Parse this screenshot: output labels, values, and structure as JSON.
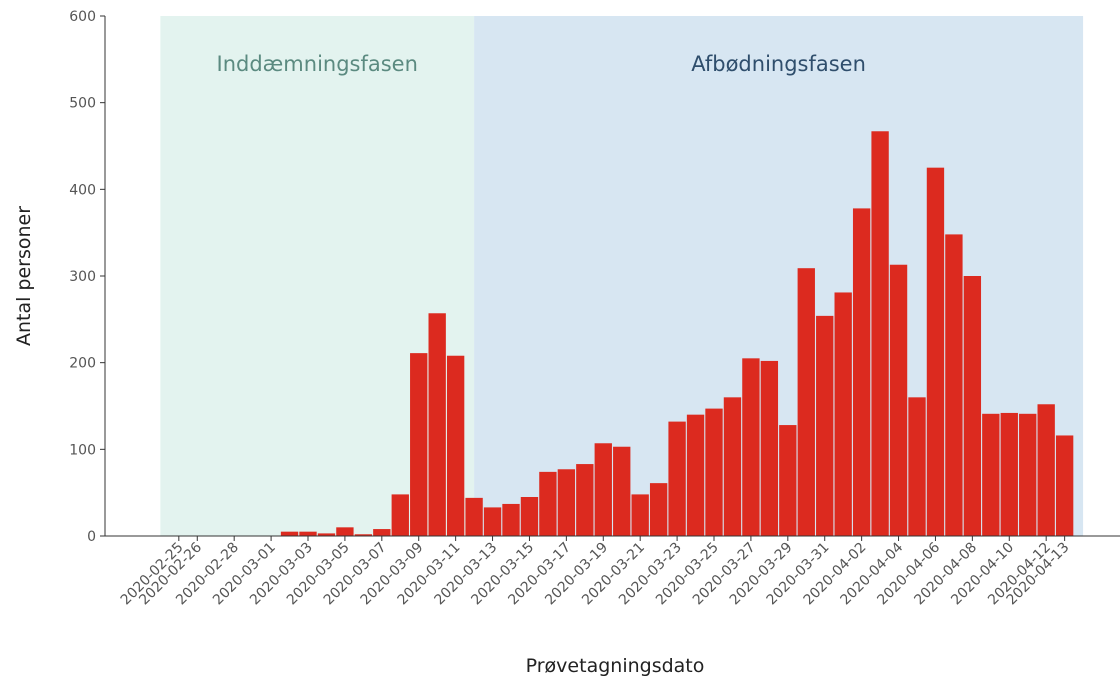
{
  "chart_data": {
    "type": "bar",
    "x_label": "Prøvetagningsdato",
    "y_label": "Antal personer",
    "x": [
      "2020-03-02",
      "2020-03-03",
      "2020-03-04",
      "2020-03-05",
      "2020-03-06",
      "2020-03-07",
      "2020-03-08",
      "2020-03-09",
      "2020-03-10",
      "2020-03-11",
      "2020-03-12",
      "2020-03-13",
      "2020-03-14",
      "2020-03-15",
      "2020-03-16",
      "2020-03-17",
      "2020-03-18",
      "2020-03-19",
      "2020-03-20",
      "2020-03-21",
      "2020-03-22",
      "2020-03-23",
      "2020-03-24",
      "2020-03-25",
      "2020-03-26",
      "2020-03-27",
      "2020-03-28",
      "2020-03-29",
      "2020-03-30",
      "2020-03-31",
      "2020-04-01",
      "2020-04-02",
      "2020-04-03",
      "2020-04-04",
      "2020-04-05",
      "2020-04-06",
      "2020-04-07",
      "2020-04-08",
      "2020-04-09",
      "2020-04-10",
      "2020-04-11",
      "2020-04-12",
      "2020-04-13"
    ],
    "values": [
      5,
      5,
      3,
      10,
      2,
      8,
      48,
      211,
      257,
      208,
      44,
      33,
      37,
      45,
      74,
      77,
      83,
      107,
      103,
      48,
      61,
      132,
      140,
      147,
      160,
      205,
      202,
      128,
      309,
      254,
      281,
      378,
      467,
      313,
      160,
      425,
      348,
      300,
      141,
      142,
      141,
      152,
      116
    ],
    "color": "#dc2a1f",
    "xlim": [
      "2020-02-21",
      "2020-04-16"
    ],
    "xticks": [
      "2020-02-25",
      "2020-02-26",
      "2020-02-28",
      "2020-03-01",
      "2020-03-03",
      "2020-03-05",
      "2020-03-07",
      "2020-03-09",
      "2020-03-11",
      "2020-03-13",
      "2020-03-15",
      "2020-03-17",
      "2020-03-19",
      "2020-03-21",
      "2020-03-23",
      "2020-03-25",
      "2020-03-27",
      "2020-03-29",
      "2020-03-31",
      "2020-04-02",
      "2020-04-04",
      "2020-04-06",
      "2020-04-08",
      "2020-04-10",
      "2020-04-12",
      "2020-04-13"
    ],
    "ylim": [
      0,
      600
    ],
    "yticks": [
      0,
      100,
      200,
      300,
      400,
      500,
      600
    ],
    "phases": [
      {
        "label": "Inddæmningsfasen",
        "start": "2020-02-24",
        "end": "2020-03-12",
        "color": "#e3f3ef",
        "text_color": "#5b8a80"
      },
      {
        "label": "Afbødningsfasen",
        "start": "2020-03-12",
        "end": "2020-04-14",
        "color": "#d7e6f2",
        "text_color": "#2f4e6c"
      }
    ]
  }
}
